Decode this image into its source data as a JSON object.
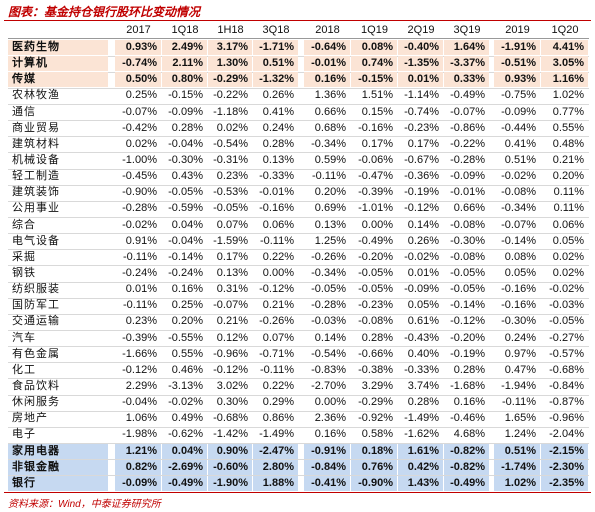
{
  "header": {
    "title": "图表：基金持仓银行股环比变动情况"
  },
  "table": {
    "columns": [
      "2017",
      "1Q18",
      "1H18",
      "3Q18",
      "2018",
      "1Q19",
      "2Q19",
      "3Q19",
      "2019",
      "1Q20"
    ],
    "rows": [
      {
        "label": "医药生物",
        "values": [
          "0.93%",
          "2.49%",
          "3.17%",
          "-1.71%",
          "-0.64%",
          "0.08%",
          "-0.40%",
          "1.64%",
          "-1.91%",
          "4.41%"
        ]
      },
      {
        "label": "计算机",
        "values": [
          "-0.74%",
          "2.11%",
          "1.30%",
          "0.51%",
          "-0.01%",
          "0.74%",
          "-1.35%",
          "-3.37%",
          "-0.51%",
          "3.05%"
        ]
      },
      {
        "label": "传媒",
        "values": [
          "0.50%",
          "0.80%",
          "-0.29%",
          "-1.32%",
          "0.16%",
          "-0.15%",
          "0.01%",
          "0.33%",
          "0.93%",
          "1.16%"
        ]
      },
      {
        "label": "农林牧渔",
        "values": [
          "0.25%",
          "-0.15%",
          "-0.22%",
          "0.26%",
          "1.36%",
          "1.51%",
          "-1.14%",
          "-0.49%",
          "-0.75%",
          "1.02%"
        ]
      },
      {
        "label": "通信",
        "values": [
          "-0.07%",
          "-0.09%",
          "-1.18%",
          "0.41%",
          "0.66%",
          "0.15%",
          "-0.74%",
          "-0.07%",
          "-0.09%",
          "0.77%"
        ]
      },
      {
        "label": "商业贸易",
        "values": [
          "-0.42%",
          "0.28%",
          "0.02%",
          "0.24%",
          "0.68%",
          "-0.16%",
          "-0.23%",
          "-0.86%",
          "-0.44%",
          "0.55%"
        ]
      },
      {
        "label": "建筑材料",
        "values": [
          "0.02%",
          "-0.04%",
          "-0.54%",
          "0.28%",
          "-0.34%",
          "0.17%",
          "0.17%",
          "-0.22%",
          "0.41%",
          "0.48%"
        ]
      },
      {
        "label": "机械设备",
        "values": [
          "-1.00%",
          "-0.30%",
          "-0.31%",
          "0.13%",
          "0.59%",
          "-0.06%",
          "-0.67%",
          "-0.28%",
          "0.51%",
          "0.21%"
        ]
      },
      {
        "label": "轻工制造",
        "values": [
          "-0.45%",
          "0.43%",
          "0.23%",
          "-0.33%",
          "-0.11%",
          "-0.47%",
          "-0.36%",
          "-0.09%",
          "-0.02%",
          "0.20%"
        ]
      },
      {
        "label": "建筑装饰",
        "values": [
          "-0.90%",
          "-0.05%",
          "-0.53%",
          "-0.01%",
          "0.20%",
          "-0.39%",
          "-0.19%",
          "-0.01%",
          "-0.08%",
          "0.11%"
        ]
      },
      {
        "label": "公用事业",
        "values": [
          "-0.28%",
          "-0.59%",
          "-0.05%",
          "-0.16%",
          "0.69%",
          "-1.01%",
          "-0.12%",
          "0.66%",
          "-0.34%",
          "0.11%"
        ]
      },
      {
        "label": "综合",
        "values": [
          "-0.02%",
          "0.04%",
          "0.07%",
          "0.06%",
          "0.13%",
          "0.00%",
          "0.14%",
          "-0.08%",
          "-0.07%",
          "0.06%"
        ]
      },
      {
        "label": "电气设备",
        "values": [
          "0.91%",
          "-0.04%",
          "-1.59%",
          "-0.11%",
          "1.25%",
          "-0.49%",
          "0.26%",
          "-0.30%",
          "-0.14%",
          "0.05%"
        ]
      },
      {
        "label": "采掘",
        "values": [
          "-0.11%",
          "-0.14%",
          "0.17%",
          "0.22%",
          "-0.26%",
          "-0.20%",
          "-0.02%",
          "-0.08%",
          "0.08%",
          "0.02%"
        ]
      },
      {
        "label": "钢铁",
        "values": [
          "-0.24%",
          "-0.24%",
          "0.13%",
          "0.00%",
          "-0.34%",
          "-0.05%",
          "0.01%",
          "-0.05%",
          "0.05%",
          "0.02%"
        ]
      },
      {
        "label": "纺织服装",
        "values": [
          "0.01%",
          "0.16%",
          "0.31%",
          "-0.12%",
          "-0.05%",
          "-0.05%",
          "-0.09%",
          "-0.05%",
          "-0.16%",
          "-0.02%"
        ]
      },
      {
        "label": "国防军工",
        "values": [
          "-0.11%",
          "0.25%",
          "-0.07%",
          "0.21%",
          "-0.28%",
          "-0.23%",
          "0.05%",
          "-0.14%",
          "-0.16%",
          "-0.03%"
        ]
      },
      {
        "label": "交通运输",
        "values": [
          "0.23%",
          "0.20%",
          "0.21%",
          "-0.26%",
          "-0.03%",
          "-0.08%",
          "0.61%",
          "-0.12%",
          "-0.30%",
          "-0.05%"
        ]
      },
      {
        "label": "汽车",
        "values": [
          "-0.39%",
          "-0.55%",
          "0.12%",
          "0.07%",
          "0.14%",
          "0.28%",
          "-0.43%",
          "-0.20%",
          "0.24%",
          "-0.27%"
        ]
      },
      {
        "label": "有色金属",
        "values": [
          "-1.66%",
          "0.55%",
          "-0.96%",
          "-0.71%",
          "-0.54%",
          "-0.66%",
          "0.40%",
          "-0.19%",
          "0.97%",
          "-0.57%"
        ]
      },
      {
        "label": "化工",
        "values": [
          "-0.12%",
          "0.46%",
          "-0.12%",
          "-0.11%",
          "-0.83%",
          "-0.38%",
          "-0.33%",
          "0.28%",
          "0.47%",
          "-0.68%"
        ]
      },
      {
        "label": "食品饮料",
        "values": [
          "2.29%",
          "-3.13%",
          "3.02%",
          "0.22%",
          "-2.70%",
          "3.29%",
          "3.74%",
          "-1.68%",
          "-1.94%",
          "-0.84%"
        ]
      },
      {
        "label": "休闲服务",
        "values": [
          "-0.04%",
          "-0.02%",
          "0.30%",
          "0.29%",
          "0.00%",
          "-0.29%",
          "0.28%",
          "0.16%",
          "-0.11%",
          "-0.87%"
        ]
      },
      {
        "label": "房地产",
        "values": [
          "1.06%",
          "0.49%",
          "-0.68%",
          "0.86%",
          "2.36%",
          "-0.92%",
          "-1.49%",
          "-0.46%",
          "1.65%",
          "-0.96%"
        ]
      },
      {
        "label": "电子",
        "values": [
          "-1.98%",
          "-0.62%",
          "-1.42%",
          "-1.49%",
          "0.16%",
          "0.58%",
          "-1.62%",
          "4.68%",
          "1.24%",
          "-2.04%"
        ]
      },
      {
        "label": "家用电器",
        "values": [
          "1.21%",
          "0.04%",
          "0.90%",
          "-2.47%",
          "-0.91%",
          "0.18%",
          "1.61%",
          "-0.82%",
          "0.51%",
          "-2.15%"
        ]
      },
      {
        "label": "非银金融",
        "values": [
          "0.82%",
          "-2.69%",
          "-0.60%",
          "2.80%",
          "-0.84%",
          "0.76%",
          "0.42%",
          "-0.82%",
          "-1.74%",
          "-2.30%"
        ]
      },
      {
        "label": "银行",
        "values": [
          "-0.09%",
          "-0.49%",
          "-1.90%",
          "1.88%",
          "-0.41%",
          "-0.90%",
          "1.43%",
          "-0.49%",
          "1.02%",
          "-2.35%"
        ]
      }
    ]
  },
  "footer": {
    "source": "资料来源：Wind，中泰证券研究所"
  }
}
